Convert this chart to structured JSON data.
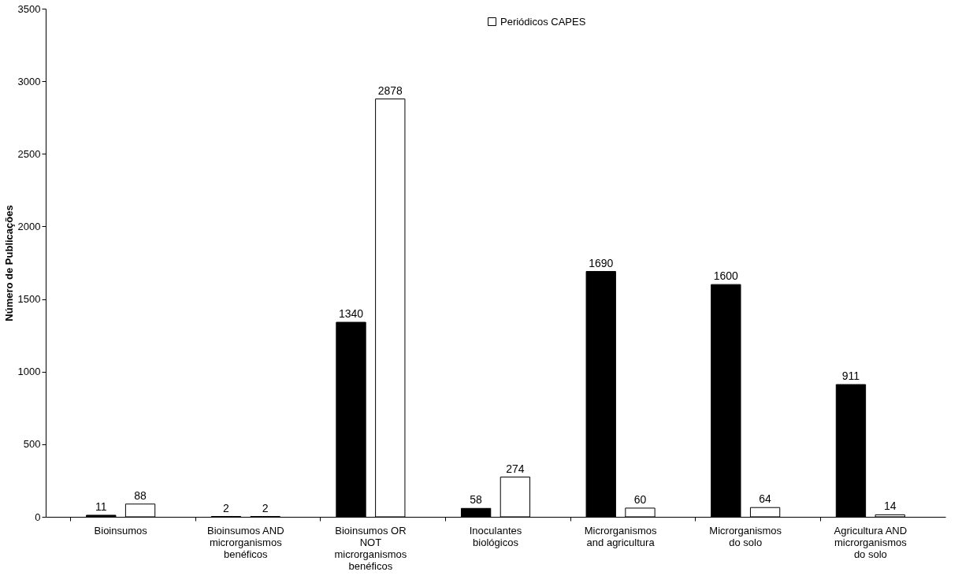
{
  "chart_data": {
    "type": "bar",
    "ylabel": "Número de Publicações",
    "categories": [
      "Bioinsumos",
      "Bioinsumos AND microrganismos benéficos",
      "Bioinsumos OR NOT microrganismos benéficos",
      "Inoculantes biológicos",
      "Microrganismos and agricultura",
      "Microrganismos do solo",
      "Agricultura AND microrganismos do solo"
    ],
    "series": [
      {
        "color": "#000000",
        "values": [
          11,
          2,
          1340,
          58,
          1690,
          1600,
          911
        ]
      },
      {
        "name": "Periódicos CAPES",
        "color": "#ffffff",
        "values": [
          88,
          2,
          2878,
          274,
          60,
          64,
          14
        ]
      }
    ],
    "ylim": [
      0,
      3500
    ],
    "yticks": [
      0,
      500,
      1000,
      1500,
      2000,
      2500,
      3000,
      3500
    ],
    "grid": false,
    "legend": "top",
    "data_labels": true
  }
}
